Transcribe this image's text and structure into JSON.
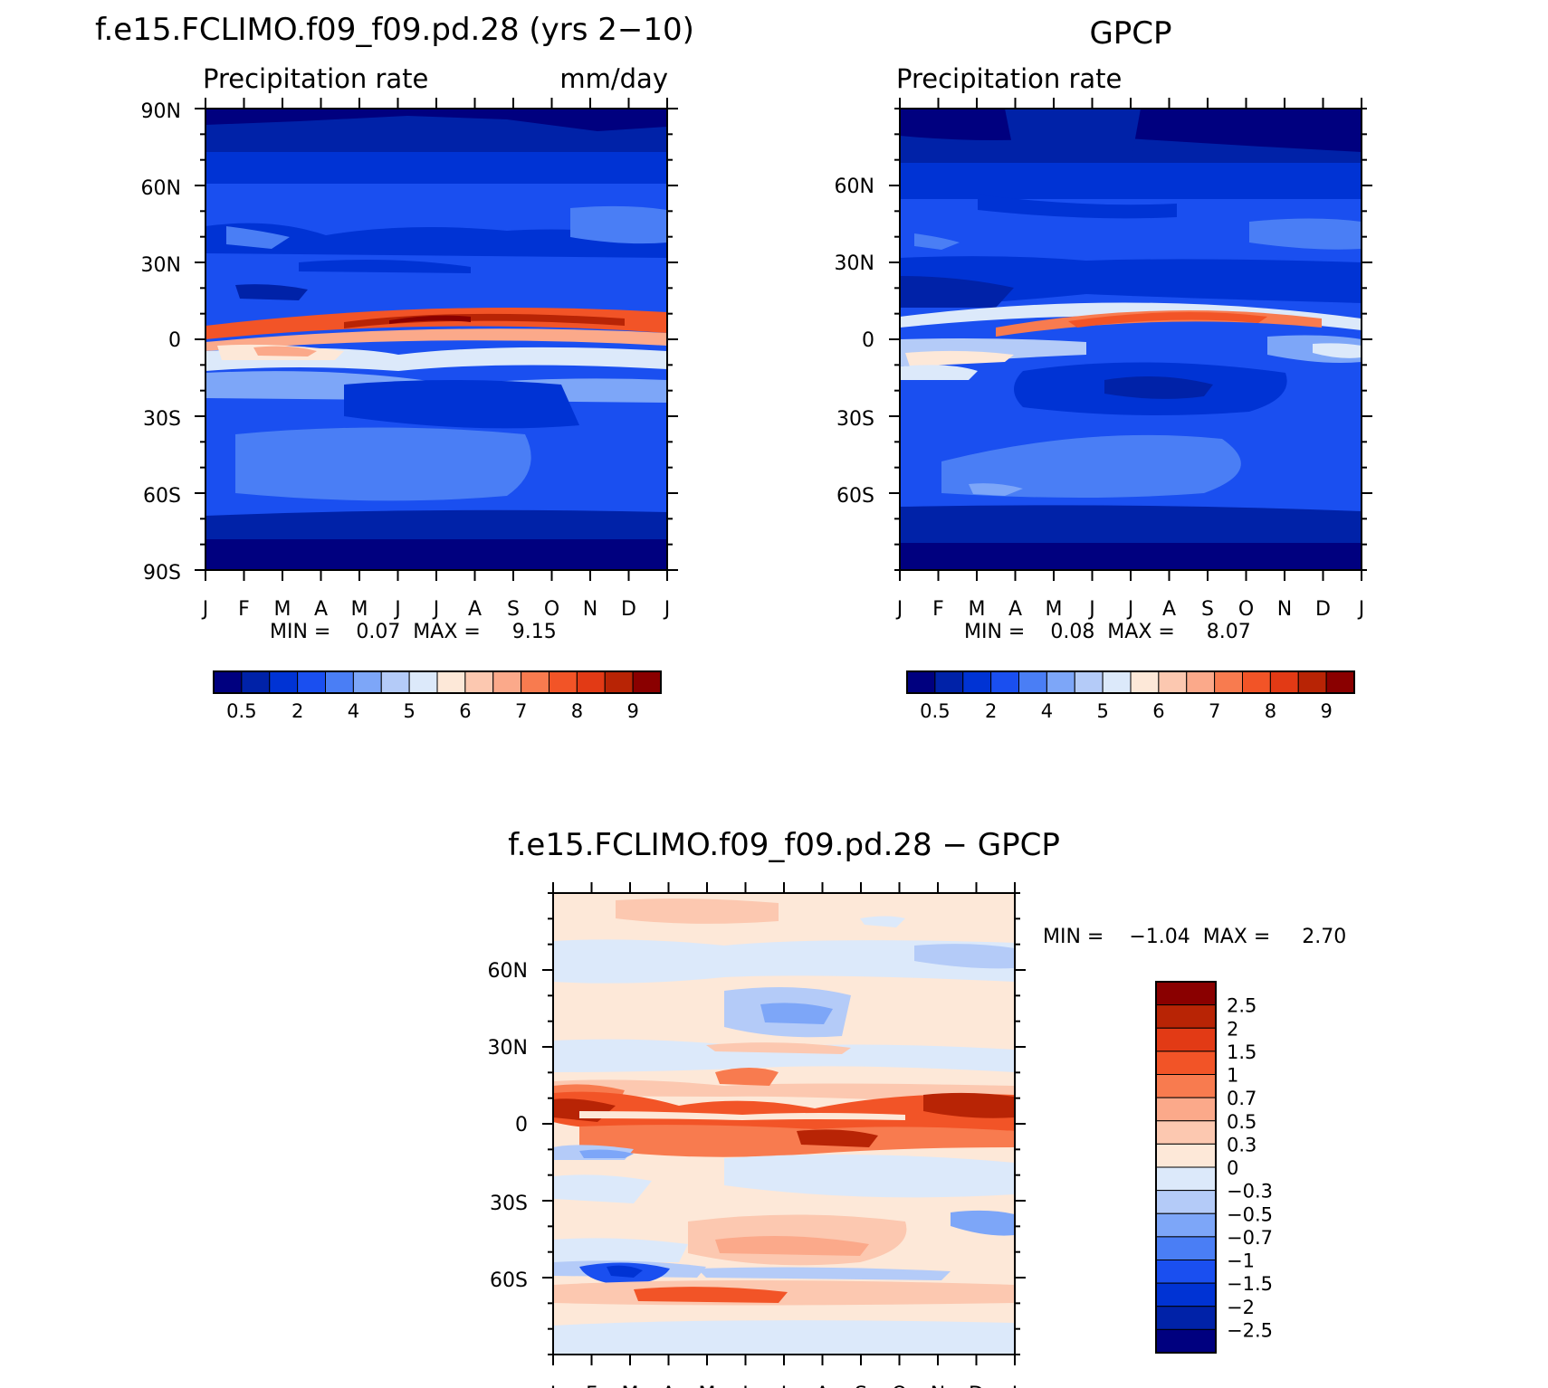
{
  "chart_data": [
    {
      "type": "heatmap",
      "panel": "model",
      "title": "f.e15.FCLIMO.f09_f09.pd.28 (yrs 2−10)",
      "subtitle_left": "Precipitation rate",
      "subtitle_right": "mm/day",
      "x_ticks": [
        "J",
        "F",
        "M",
        "A",
        "M",
        "J",
        "J",
        "A",
        "S",
        "O",
        "N",
        "D",
        "J"
      ],
      "y_ticks": [
        "90N",
        "60N",
        "30N",
        "0",
        "30S",
        "60S",
        "90S"
      ],
      "y_tick_values": [
        90,
        60,
        30,
        0,
        -30,
        -60,
        -90
      ],
      "ylim": [
        -90,
        90
      ],
      "stats_text": "MIN =    0.07  MAX =     9.15",
      "min": 0.07,
      "max": 9.15,
      "colorbar": {
        "colors": [
          "#00007f",
          "#0022a8",
          "#0033d4",
          "#1a4ff0",
          "#4a7ef5",
          "#7da6f8",
          "#b4cbf8",
          "#dce9fa",
          "#fde8d8",
          "#fcc8b0",
          "#fba98a",
          "#f87b4f",
          "#f25427",
          "#e23a15",
          "#b82405",
          "#8a0000"
        ],
        "labels": [
          "0.5",
          "2",
          "4",
          "5",
          "6",
          "7",
          "8",
          "9"
        ]
      }
    },
    {
      "type": "heatmap",
      "panel": "obs",
      "title": "GPCP",
      "subtitle_left": "Precipitation rate",
      "x_ticks": [
        "J",
        "F",
        "M",
        "A",
        "M",
        "J",
        "J",
        "A",
        "S",
        "O",
        "N",
        "D",
        "J"
      ],
      "y_ticks": [
        "60N",
        "30N",
        "0",
        "30S",
        "60S"
      ],
      "y_tick_values": [
        60,
        30,
        0,
        -30,
        -60
      ],
      "ylim": [
        -90,
        90
      ],
      "stats_text": "MIN =    0.08  MAX =     8.07",
      "min": 0.08,
      "max": 8.07,
      "colorbar": {
        "colors": [
          "#00007f",
          "#0022a8",
          "#0033d4",
          "#1a4ff0",
          "#4a7ef5",
          "#7da6f8",
          "#b4cbf8",
          "#dce9fa",
          "#fde8d8",
          "#fcc8b0",
          "#fba98a",
          "#f87b4f",
          "#f25427",
          "#e23a15",
          "#b82405",
          "#8a0000"
        ],
        "labels": [
          "0.5",
          "2",
          "4",
          "5",
          "6",
          "7",
          "8",
          "9"
        ]
      }
    },
    {
      "type": "heatmap",
      "panel": "diff",
      "title": "f.e15.FCLIMO.f09_f09.pd.28 − GPCP",
      "x_ticks": [
        "J",
        "F",
        "M",
        "A",
        "M",
        "J",
        "J",
        "A",
        "S",
        "O",
        "N",
        "D",
        "J"
      ],
      "y_ticks": [
        "60N",
        "30N",
        "0",
        "30S",
        "60S"
      ],
      "y_tick_values": [
        60,
        30,
        0,
        -30,
        -60
      ],
      "ylim": [
        -90,
        90
      ],
      "stats_text": "MIN =    −1.04  MAX =     2.70",
      "min": -1.04,
      "max": 2.7,
      "colorbar": {
        "colors": [
          "#8a0000",
          "#b82405",
          "#e23a15",
          "#f25427",
          "#f87b4f",
          "#fba98a",
          "#fcc8b0",
          "#fde8d8",
          "#dce9fa",
          "#b4cbf8",
          "#7da6f8",
          "#4a7ef5",
          "#1a4ff0",
          "#0033d4",
          "#0022a8",
          "#00007f"
        ],
        "labels": [
          "2.5",
          "2",
          "1.5",
          "1",
          "0.7",
          "0.5",
          "0.3",
          "0",
          "−0.3",
          "−0.5",
          "−0.7",
          "−1",
          "−1.5",
          "−2",
          "−2.5"
        ]
      }
    }
  ]
}
